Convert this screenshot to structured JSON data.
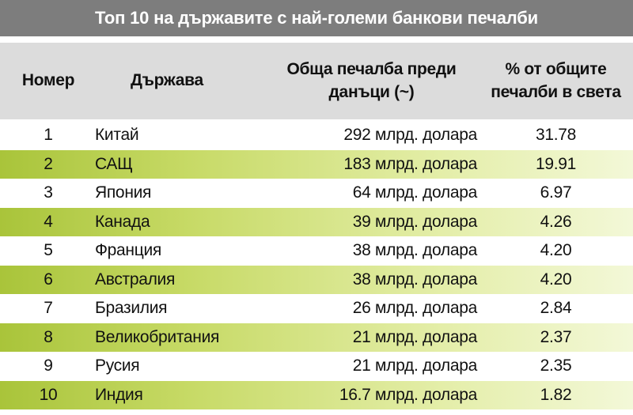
{
  "title": "Топ 10 на държавите с най-големи банкови печалби",
  "headers": {
    "number": "Номер",
    "country": "Държава",
    "profit_line1": "Обща печалба преди",
    "profit_line2": "данъци (~)",
    "pct_line1": "% от общите",
    "pct_line2": "печалби в света"
  },
  "colors": {
    "title_bar": "#7d7d7d",
    "header_bg": "#dcdcdc",
    "row_highlight": "#a9c43a"
  },
  "rows": [
    {
      "number": "1",
      "country": "Китай",
      "profit": "292 млрд. долара",
      "pct": "31.78"
    },
    {
      "number": "2",
      "country": "САЩ",
      "profit": "183 млрд. долара",
      "pct": "19.91"
    },
    {
      "number": "3",
      "country": "Япония",
      "profit": "64 млрд. долара",
      "pct": "6.97"
    },
    {
      "number": "4",
      "country": "Канада",
      "profit": "39 млрд. долара",
      "pct": "4.26"
    },
    {
      "number": "5",
      "country": "Франция",
      "profit": "38 млрд. долара",
      "pct": "4.20"
    },
    {
      "number": "6",
      "country": "Австралия",
      "profit": "38 млрд. долара",
      "pct": "4.20"
    },
    {
      "number": "7",
      "country": "Бразилия",
      "profit": "26 млрд. долара",
      "pct": "2.84"
    },
    {
      "number": "8",
      "country": "Великобритания",
      "profit": "21 млрд. долара",
      "pct": "2.37"
    },
    {
      "number": "9",
      "country": "Русия",
      "profit": "21 млрд. долара",
      "pct": "2.35"
    },
    {
      "number": "10",
      "country": "Индия",
      "profit": "16.7 млрд. долара",
      "pct": "1.82"
    }
  ]
}
